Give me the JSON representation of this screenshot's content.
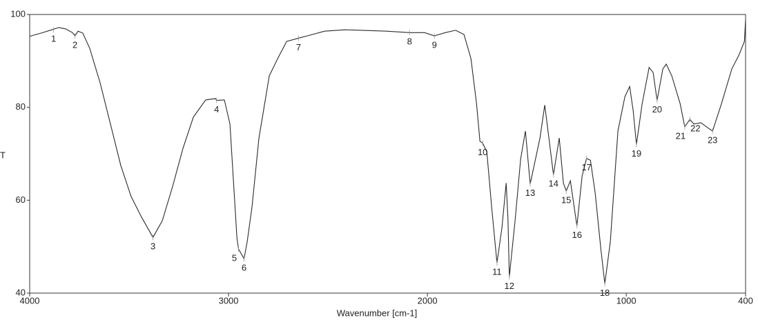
{
  "chart_data": {
    "type": "line",
    "xlabel": "Wavenumber [cm-1]",
    "ylabel": "T",
    "xlim": [
      4000,
      400
    ],
    "ylim": [
      40,
      100
    ],
    "xticks": [
      4000,
      3000,
      2000,
      1000,
      400
    ],
    "yticks": [
      40,
      60,
      80,
      100
    ],
    "color": "#2a2a2a",
    "x": [
      4000,
      3941,
      3889,
      3854,
      3819,
      3785,
      3772,
      3757,
      3733,
      3698,
      3646,
      3594,
      3542,
      3490,
      3437,
      3380,
      3333,
      3281,
      3229,
      3177,
      3115,
      3066,
      3060,
      3021,
      2993,
      2976,
      2958,
      2950,
      2922,
      2906,
      2882,
      2847,
      2795,
      2753,
      2708,
      2648,
      2604,
      2517,
      2413,
      2205,
      2090,
      2014,
      1965,
      1910,
      1858,
      1816,
      1781,
      1753,
      1736,
      1722,
      1701,
      1677,
      1650,
      1625,
      1604,
      1595,
      1588,
      1559,
      1531,
      1507,
      1483,
      1434,
      1410,
      1389,
      1366,
      1337,
      1316,
      1302,
      1281,
      1267,
      1248,
      1222,
      1200,
      1180,
      1156,
      1128,
      1108,
      1080,
      1042,
      1007,
      983,
      965,
      949,
      920,
      885,
      865,
      845,
      816,
      799,
      771,
      729,
      706,
      680,
      660,
      625,
      590,
      566,
      521,
      469,
      434,
      406,
      400
    ],
    "values": [
      95.3,
      96.0,
      96.7,
      97.2,
      96.9,
      96.1,
      95.4,
      96.4,
      96.0,
      92.7,
      85.3,
      76.4,
      67.5,
      60.8,
      56.3,
      52.0,
      55.6,
      63.0,
      71.2,
      77.9,
      81.6,
      81.9,
      81.5,
      81.6,
      76.4,
      64.5,
      51.9,
      49.5,
      47.4,
      51.1,
      58.5,
      73.4,
      86.8,
      90.5,
      94.2,
      94.9,
      95.4,
      96.4,
      96.7,
      96.4,
      96.1,
      96.1,
      95.4,
      96.1,
      96.6,
      95.7,
      90.5,
      80.8,
      72.7,
      72.3,
      70.4,
      58.5,
      46.5,
      54.1,
      63.7,
      56.0,
      43.5,
      55.6,
      68.9,
      74.9,
      63.5,
      73.4,
      80.5,
      73.4,
      65.5,
      73.4,
      63.7,
      62.0,
      64.2,
      60.0,
      54.5,
      65.2,
      69.0,
      68.6,
      61.5,
      49.6,
      42.0,
      51.1,
      74.9,
      82.3,
      84.5,
      79.3,
      72.0,
      80.8,
      88.6,
      87.5,
      81.5,
      88.3,
      89.3,
      86.8,
      80.8,
      75.8,
      77.4,
      76.4,
      76.7,
      75.6,
      74.9,
      80.8,
      88.3,
      91.2,
      94.2,
      98.9
    ],
    "annotations": [
      {
        "text": "1",
        "x": 3880,
        "y": 96.7
      },
      {
        "text": "2",
        "x": 3772,
        "y": 95.4
      },
      {
        "text": "3",
        "x": 3380,
        "y": 52.0
      },
      {
        "text": "4",
        "x": 3060,
        "y": 81.5
      },
      {
        "text": "5",
        "x": 2950,
        "y": 49.5
      },
      {
        "text": "6",
        "x": 2922,
        "y": 47.4
      },
      {
        "text": "7",
        "x": 2648,
        "y": 94.9
      },
      {
        "text": "8",
        "x": 2090,
        "y": 96.1
      },
      {
        "text": "9",
        "x": 1965,
        "y": 95.4
      },
      {
        "text": "10",
        "x": 1722,
        "y": 72.3
      },
      {
        "text": "11",
        "x": 1650,
        "y": 46.5
      },
      {
        "text": "12",
        "x": 1588,
        "y": 43.5
      },
      {
        "text": "13",
        "x": 1483,
        "y": 63.5
      },
      {
        "text": "14",
        "x": 1366,
        "y": 65.5
      },
      {
        "text": "15",
        "x": 1302,
        "y": 62.0
      },
      {
        "text": "16",
        "x": 1248,
        "y": 54.5
      },
      {
        "text": "17",
        "x": 1200,
        "y": 69.0
      },
      {
        "text": "18",
        "x": 1108,
        "y": 42.0
      },
      {
        "text": "19",
        "x": 949,
        "y": 72.0
      },
      {
        "text": "20",
        "x": 845,
        "y": 81.5
      },
      {
        "text": "21",
        "x": 706,
        "y": 75.8
      },
      {
        "text": "22",
        "x": 680,
        "y": 77.4
      },
      {
        "text": "23",
        "x": 566,
        "y": 74.9
      }
    ]
  }
}
